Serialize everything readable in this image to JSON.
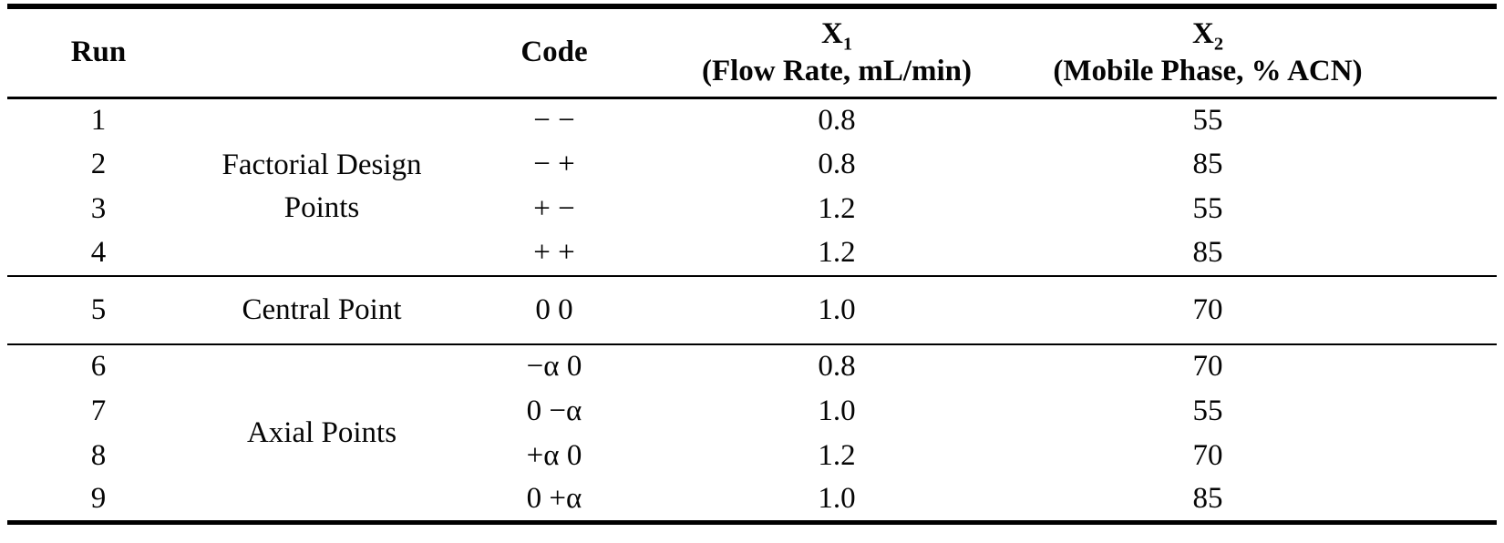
{
  "table": {
    "columns": {
      "run": "Run",
      "group": "",
      "code": "Code",
      "x1": {
        "symbol": "X",
        "sub": "1",
        "desc": "(Flow Rate, mL/min)"
      },
      "x2": {
        "symbol": "X",
        "sub": "2",
        "desc": "(Mobile Phase, % ACN)"
      }
    },
    "groups": [
      {
        "label": "Factorial Design Points",
        "rows": [
          {
            "run": "1",
            "code": "− −",
            "x1": "0.8",
            "x2": "55"
          },
          {
            "run": "2",
            "code": "− +",
            "x1": "0.8",
            "x2": "85"
          },
          {
            "run": "3",
            "code": "+ −",
            "x1": "1.2",
            "x2": "55"
          },
          {
            "run": "4",
            "code": "+ +",
            "x1": "1.2",
            "x2": "85"
          }
        ]
      },
      {
        "label": "Central Point",
        "rows": [
          {
            "run": "5",
            "code": "0 0",
            "x1": "1.0",
            "x2": "70"
          }
        ]
      },
      {
        "label": "Axial Points",
        "rows": [
          {
            "run": "6",
            "code": "−α 0",
            "x1": "0.8",
            "x2": "70"
          },
          {
            "run": "7",
            "code": "0 −α",
            "x1": "1.0",
            "x2": "55"
          },
          {
            "run": "8",
            "code": "+α 0",
            "x1": "1.2",
            "x2": "70"
          },
          {
            "run": "9",
            "code": "0 +α",
            "x1": "1.0",
            "x2": "85"
          }
        ]
      }
    ]
  },
  "colors": {
    "text": "#000000",
    "background": "#ffffff",
    "rule": "#000000"
  }
}
